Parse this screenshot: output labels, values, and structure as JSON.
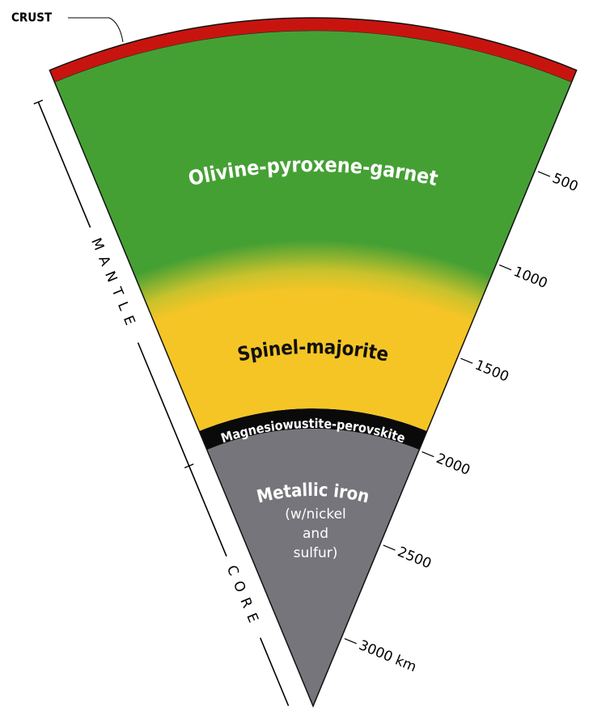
{
  "crust_label": "CRUST",
  "layers": [
    {
      "label": "Olivine-pyroxene-garnet"
    },
    {
      "label": "Spinel-majorite"
    },
    {
      "label": "Magnesiowustite-perovskite"
    },
    {
      "label": "Metallic iron",
      "note": [
        "(w/nickel",
        "and",
        "sulfur)"
      ]
    }
  ],
  "regions": [
    "MANTLE",
    "CORE"
  ],
  "depth_scale": [
    "500",
    "1000",
    "1500",
    "2000",
    "2500",
    "3000 km"
  ]
}
